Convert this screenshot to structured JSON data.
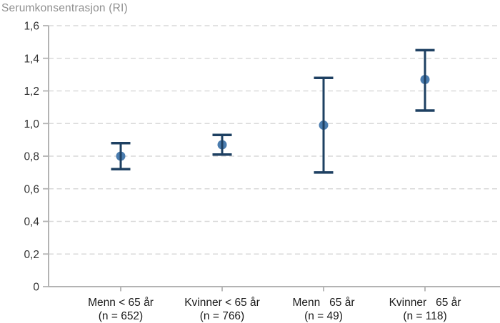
{
  "chart_data": {
    "type": "scatter",
    "subtype": "point_estimates_with_error_bars",
    "title": "Serumkonsentrasjon (RI)",
    "xlabel": "",
    "ylabel": "Serumkonsentrasjon (RI)",
    "ylim": [
      0,
      1.6
    ],
    "ytick_step": 0.2,
    "yticks": [
      {
        "value": 0,
        "label": "0"
      },
      {
        "value": 0.2,
        "label": "0,2"
      },
      {
        "value": 0.4,
        "label": "0,4"
      },
      {
        "value": 0.6,
        "label": "0,6"
      },
      {
        "value": 0.8,
        "label": "0,8"
      },
      {
        "value": 1.0,
        "label": "1,0"
      },
      {
        "value": 1.2,
        "label": "1,2"
      },
      {
        "value": 1.4,
        "label": "1,4"
      },
      {
        "value": 1.6,
        "label": "1,6"
      }
    ],
    "grid": {
      "horizontal": true,
      "style": "dashed",
      "vertical": false
    },
    "legend_position": "none",
    "points": [
      {
        "category": "Menn < 65 år",
        "sublabel": "(n = 652)",
        "n": 652,
        "mean": 0.8,
        "ci_low": 0.72,
        "ci_high": 0.88
      },
      {
        "category": "Kvinner < 65 år",
        "sublabel": "(n = 766)",
        "n": 766,
        "mean": 0.87,
        "ci_low": 0.81,
        "ci_high": 0.93
      },
      {
        "category": "Menn   65 år",
        "sublabel": "(n = 49)",
        "n": 49,
        "mean": 0.99,
        "ci_low": 0.7,
        "ci_high": 1.28
      },
      {
        "category": "Kvinner   65 år",
        "sublabel": "(n = 118)",
        "n": 118,
        "mean": 1.27,
        "ci_low": 1.08,
        "ci_high": 1.45
      }
    ],
    "colors": {
      "marker": "#4a7cae",
      "errorbar": "#1e4062",
      "gridline": "#d9d9d9",
      "axis": "#b3b3b3",
      "tick_label": "#333333",
      "category_label": "#1a1a1a",
      "title": "#8f8f8f",
      "background": "#ffffff"
    }
  }
}
